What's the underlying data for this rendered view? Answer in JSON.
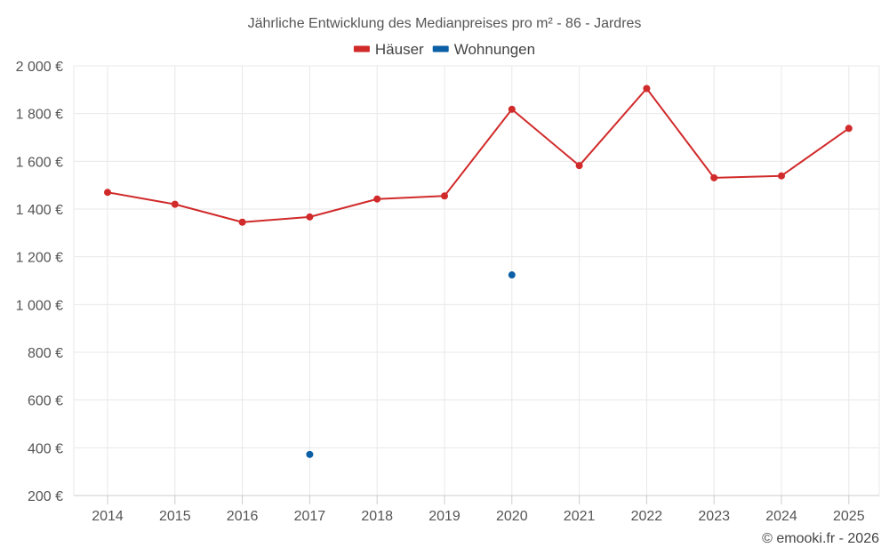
{
  "chart_data": {
    "type": "line",
    "title": "Jährliche Entwicklung des Medianpreises pro m² - 86 - Jardres",
    "categories": [
      "2014",
      "2015",
      "2016",
      "2017",
      "2018",
      "2019",
      "2020",
      "2021",
      "2022",
      "2023",
      "2024",
      "2025"
    ],
    "series": [
      {
        "name": "Häuser",
        "color": "#d12a2a",
        "style": "line-markers",
        "values": [
          1470,
          1420,
          1345,
          1367,
          1442,
          1455,
          1818,
          1582,
          1905,
          1531,
          1539,
          1738
        ]
      },
      {
        "name": "Wohnungen",
        "color": "#0b5fa5",
        "style": "markers",
        "values": [
          null,
          null,
          null,
          372,
          null,
          null,
          1124,
          null,
          null,
          null,
          null,
          null
        ]
      }
    ],
    "ylim": [
      200,
      2000
    ],
    "yticks": [
      200,
      400,
      600,
      800,
      1000,
      1200,
      1400,
      1600,
      1800,
      2000
    ],
    "ytick_labels": [
      "200 €",
      "400 €",
      "600 €",
      "800 €",
      "1 000 €",
      "1 200 €",
      "1 400 €",
      "1 600 €",
      "1 800 €",
      "2 000 €"
    ],
    "xlabel": "",
    "ylabel": "",
    "grid": true,
    "legend": "top-center"
  },
  "credit": "© emooki.fr - 2026"
}
